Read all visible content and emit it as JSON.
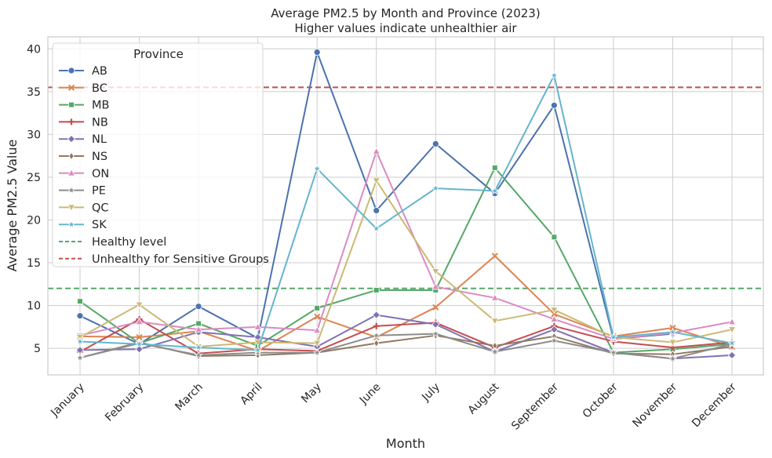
{
  "chart_data": {
    "type": "line",
    "title": "Average PM2.5 by Month and Province (2023)",
    "subtitle": "Higher values indicate unhealthier air",
    "xlabel": "Month",
    "ylabel": "Average PM2.5 Value",
    "categories": [
      "January",
      "February",
      "March",
      "April",
      "May",
      "June",
      "July",
      "August",
      "September",
      "October",
      "November",
      "December"
    ],
    "ylim": [
      1.9,
      41.4
    ],
    "yticks": [
      5,
      10,
      15,
      20,
      25,
      30,
      35,
      40
    ],
    "grid": true,
    "legend": {
      "title": "Province",
      "placement": "top-left"
    },
    "series": [
      {
        "name": "AB",
        "color": "#4c72b0",
        "marker": "circle",
        "values": [
          8.8,
          5.5,
          9.9,
          6.2,
          39.6,
          21.1,
          28.9,
          23.1,
          33.4,
          6.1,
          6.7,
          null
        ]
      },
      {
        "name": "BC",
        "color": "#dd8452",
        "marker": "x",
        "values": [
          6.4,
          6.3,
          7.0,
          4.7,
          8.7,
          6.3,
          9.8,
          15.8,
          9.0,
          6.4,
          7.4,
          5.2
        ]
      },
      {
        "name": "MB",
        "color": "#55a868",
        "marker": "square",
        "values": [
          10.5,
          5.6,
          7.9,
          5.3,
          9.7,
          11.8,
          11.8,
          26.1,
          18.0,
          4.5,
          4.9,
          5.5
        ]
      },
      {
        "name": "NB",
        "color": "#c44e52",
        "marker": "plus",
        "values": [
          4.6,
          8.4,
          4.4,
          4.9,
          4.7,
          7.6,
          8.0,
          5.1,
          7.6,
          5.8,
          5.1,
          5.7
        ]
      },
      {
        "name": "NL",
        "color": "#8172b3",
        "marker": "diamond",
        "values": [
          4.8,
          4.9,
          6.9,
          6.3,
          5.2,
          8.9,
          7.8,
          4.6,
          7.2,
          4.5,
          3.8,
          4.2
        ]
      },
      {
        "name": "NS",
        "color": "#937860",
        "marker": "thin-diamond",
        "values": [
          3.9,
          5.7,
          4.1,
          4.2,
          4.5,
          5.6,
          6.5,
          5.3,
          6.4,
          4.4,
          4.3,
          5.2
        ]
      },
      {
        "name": "ON",
        "color": "#da8bc3",
        "marker": "triangle-up",
        "values": [
          6.5,
          8.1,
          7.2,
          7.5,
          7.1,
          28.0,
          12.2,
          10.9,
          8.4,
          6.1,
          6.8,
          8.1
        ]
      },
      {
        "name": "PE",
        "color": "#8c8c8c",
        "marker": "star",
        "values": [
          3.9,
          5.6,
          4.2,
          4.5,
          4.5,
          6.5,
          6.7,
          4.6,
          5.9,
          4.5,
          3.8,
          5.5
        ]
      },
      {
        "name": "QC",
        "color": "#ccb974",
        "marker": "triangle-down",
        "values": [
          6.3,
          10.1,
          5.2,
          5.7,
          5.6,
          24.6,
          14.0,
          8.2,
          9.5,
          6.3,
          5.7,
          7.2
        ]
      },
      {
        "name": "SK",
        "color": "#64b5cd",
        "marker": "star",
        "values": [
          5.8,
          5.5,
          5.1,
          4.8,
          26.0,
          19.0,
          23.7,
          23.4,
          36.9,
          6.3,
          6.9,
          5.6
        ]
      }
    ],
    "reference_lines": [
      {
        "name": "Healthy level",
        "value": 12,
        "color": "#55a868",
        "style": "dashed"
      },
      {
        "name": "Unhealthy for Sensitive Groups",
        "value": 35.5,
        "color": "#c44e52",
        "style": "dashed"
      }
    ]
  }
}
